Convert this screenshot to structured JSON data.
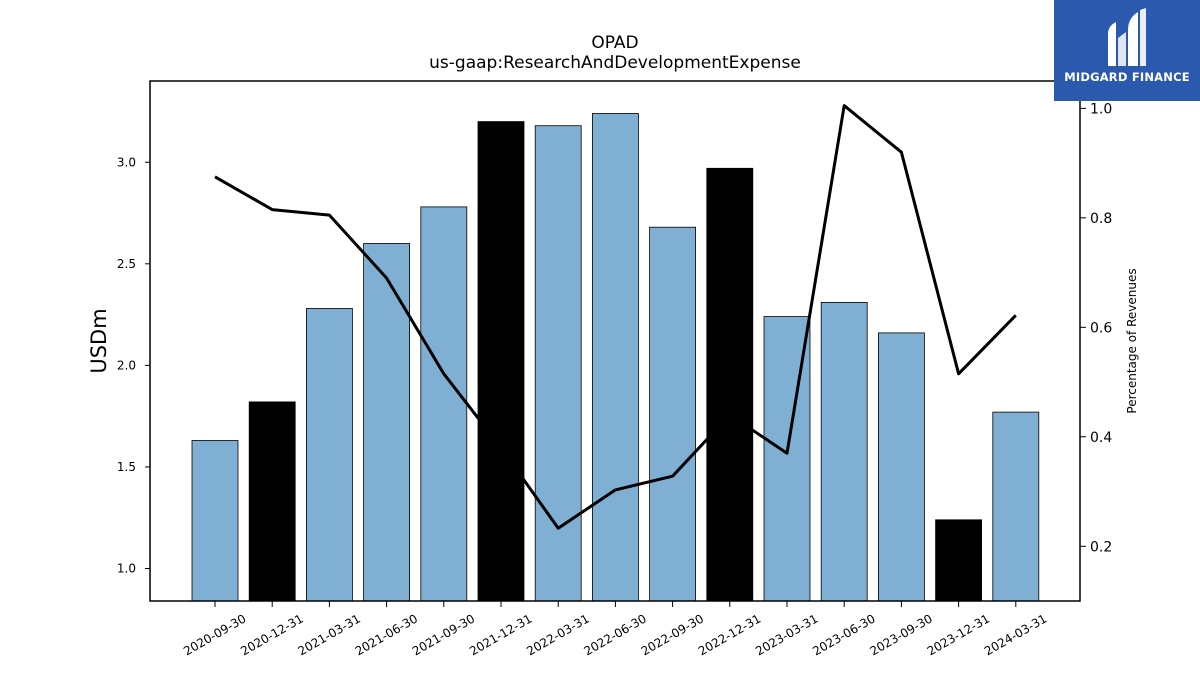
{
  "chart_data": {
    "type": "bar",
    "title": "OPAD",
    "subtitle": "us-gaap:ResearchAndDevelopmentExpense",
    "ylabel": "USDm",
    "y2label": "Percentage of Revenues",
    "ylim": [
      0.84,
      3.4
    ],
    "y2lim": [
      0.1,
      1.05
    ],
    "yticks": [
      "1.0",
      "1.5",
      "2.0",
      "2.5",
      "3.0"
    ],
    "y2ticks": [
      "0.2",
      "0.4",
      "0.6",
      "0.8",
      "1.0"
    ],
    "categories": [
      "2020-09-30",
      "2020-12-31",
      "2021-03-31",
      "2021-06-30",
      "2021-09-30",
      "2021-12-31",
      "2022-03-31",
      "2022-06-30",
      "2022-09-30",
      "2022-12-31",
      "2023-03-31",
      "2023-06-30",
      "2023-09-30",
      "2023-12-31",
      "2024-03-31"
    ],
    "series": [
      {
        "type": "bar",
        "values": [
          1.63,
          1.82,
          2.28,
          2.6,
          2.78,
          3.2,
          3.18,
          3.24,
          2.68,
          2.97,
          2.24,
          2.31,
          2.16,
          1.24,
          1.77
        ],
        "fiscal_year_end": [
          false,
          true,
          false,
          false,
          false,
          true,
          false,
          false,
          false,
          true,
          false,
          false,
          false,
          true,
          false
        ]
      },
      {
        "type": "line",
        "axis": "right",
        "values": [
          0.875,
          0.815,
          0.805,
          0.69,
          0.515,
          0.38,
          0.233,
          0.303,
          0.328,
          0.44,
          0.37,
          1.005,
          0.92,
          0.515,
          0.622
        ]
      }
    ],
    "colors": {
      "bar": "#7fafd3",
      "bar_fiscal": "#000000",
      "line": "#000000"
    },
    "grid": false
  },
  "logo": {
    "text": "MIDGARD FINANCE"
  }
}
